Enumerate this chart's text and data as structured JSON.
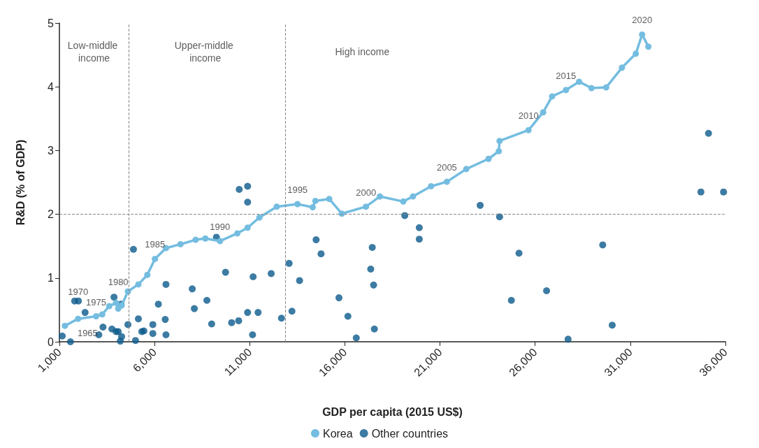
{
  "chart_data": {
    "type": "scatter",
    "xlabel": "GDP per capita (2015 US$)",
    "ylabel": "R&D (% of GDP)",
    "xlim": [
      1000,
      36000
    ],
    "ylim": [
      0,
      5
    ],
    "xticks": [
      {
        "value": 1000,
        "label": "1,000"
      },
      {
        "value": 6000,
        "label": "6,000"
      },
      {
        "value": 11000,
        "label": "11,000"
      },
      {
        "value": 16000,
        "label": "16,000"
      },
      {
        "value": 21000,
        "label": "21,000"
      },
      {
        "value": 26000,
        "label": "26,000"
      },
      {
        "value": 31000,
        "label": "31,000"
      },
      {
        "value": 36000,
        "label": "36,000"
      }
    ],
    "yticks": [
      0,
      1,
      2,
      3,
      4,
      5
    ],
    "grid": false,
    "legend": "bottom",
    "marker": "circle",
    "line_style": "solid",
    "series": [
      {
        "name": "Korea",
        "type": "line",
        "color": "#74bde0",
        "x": [
          1290,
          1980,
          2930,
          3250,
          3620,
          3980,
          4090,
          4270,
          4600,
          5150,
          5620,
          6020,
          6600,
          7360,
          8160,
          8670,
          9440,
          10350,
          10890,
          11510,
          12420,
          13510,
          14310,
          14450,
          15180,
          15840,
          17110,
          17840,
          19070,
          19580,
          20530,
          21360,
          22380,
          23550,
          24090,
          24130,
          25650,
          26420,
          26890,
          27620,
          28310,
          28960,
          29730,
          30560,
          31290,
          31620,
          31950
        ],
        "values": [
          0.25,
          0.36,
          0.4,
          0.43,
          0.56,
          0.61,
          0.52,
          0.57,
          0.79,
          0.9,
          1.05,
          1.3,
          1.47,
          1.53,
          1.6,
          1.62,
          1.58,
          1.7,
          1.79,
          1.95,
          2.12,
          2.16,
          2.11,
          2.21,
          2.24,
          2.01,
          2.12,
          2.28,
          2.2,
          2.28,
          2.44,
          2.51,
          2.71,
          2.87,
          2.99,
          3.15,
          3.32,
          3.6,
          3.85,
          3.95,
          4.08,
          3.98,
          3.99,
          4.3,
          4.52,
          4.82,
          4.63
        ]
      },
      {
        "name": "Other countries",
        "color": "#0b5a8c",
        "x": [
          1150,
          1580,
          1800,
          2000,
          2350,
          3070,
          3290,
          3760,
          3870,
          3980,
          4090,
          4240,
          4270,
          4200,
          4600,
          4890,
          5000,
          5150,
          5330,
          5440,
          5910,
          5910,
          6200,
          6600,
          6560,
          6600,
          7980,
          8090,
          8750,
          9000,
          9250,
          9730,
          10050,
          10420,
          10450,
          10890,
          10890,
          10890,
          11150,
          11180,
          11440,
          12130,
          12670,
          13070,
          13220,
          13620,
          14490,
          14750,
          15690,
          16160,
          16600,
          17440,
          17360,
          17510,
          17550,
          19150,
          19910,
          19910,
          23110,
          24130,
          25150,
          24750,
          26600,
          27730,
          29550,
          30050,
          34710,
          35110,
          35900
        ],
        "values": [
          0.09,
          0.0,
          0.64,
          0.64,
          0.46,
          0.11,
          0.23,
          0.2,
          0.7,
          0.16,
          0.16,
          0.59,
          0.08,
          0.01,
          0.27,
          1.45,
          0.02,
          0.36,
          0.16,
          0.17,
          0.27,
          0.13,
          0.59,
          0.9,
          0.35,
          0.11,
          0.83,
          0.52,
          0.65,
          0.28,
          1.64,
          1.09,
          0.3,
          0.33,
          2.39,
          2.44,
          2.19,
          0.46,
          0.11,
          1.02,
          0.46,
          1.07,
          0.37,
          1.23,
          0.48,
          0.96,
          1.6,
          1.38,
          0.69,
          0.4,
          0.06,
          1.48,
          1.14,
          0.89,
          0.2,
          1.98,
          1.79,
          1.61,
          2.14,
          1.96,
          1.39,
          0.65,
          0.8,
          0.04,
          1.52,
          0.26,
          2.35,
          3.27,
          2.35
        ]
      }
    ],
    "ref_lines": [
      {
        "axis": "x",
        "value": 4640,
        "line_style": "dashed",
        "color": "#888888"
      },
      {
        "axis": "x",
        "value": 12890,
        "line_style": "dashed",
        "color": "#888888"
      },
      {
        "axis": "y",
        "value": 2,
        "line_style": "dashed",
        "color": "#888888"
      }
    ],
    "annotations": [
      "Low-middle income",
      "Upper-middle income",
      "High income",
      {
        "text": "1965",
        "x": 1290,
        "y": 0.25
      },
      {
        "text": "1970",
        "x": 1980,
        "y": 0.36
      },
      {
        "text": "1975",
        "x": 2930,
        "y": 0.4
      },
      {
        "text": "1980",
        "x": 4090,
        "y": 0.52
      },
      {
        "text": "1985",
        "x": 6020,
        "y": 1.3
      },
      {
        "text": "1990",
        "x": 9440,
        "y": 1.58
      },
      {
        "text": "1995",
        "x": 13510,
        "y": 2.16
      },
      {
        "text": "2000",
        "x": 17110,
        "y": 2.12
      },
      {
        "text": "2005",
        "x": 21360,
        "y": 2.51
      },
      {
        "text": "2010",
        "x": 25650,
        "y": 3.32
      },
      {
        "text": "2015",
        "x": 27620,
        "y": 3.95
      },
      {
        "text": "2020",
        "x": 31620,
        "y": 4.82
      }
    ]
  }
}
